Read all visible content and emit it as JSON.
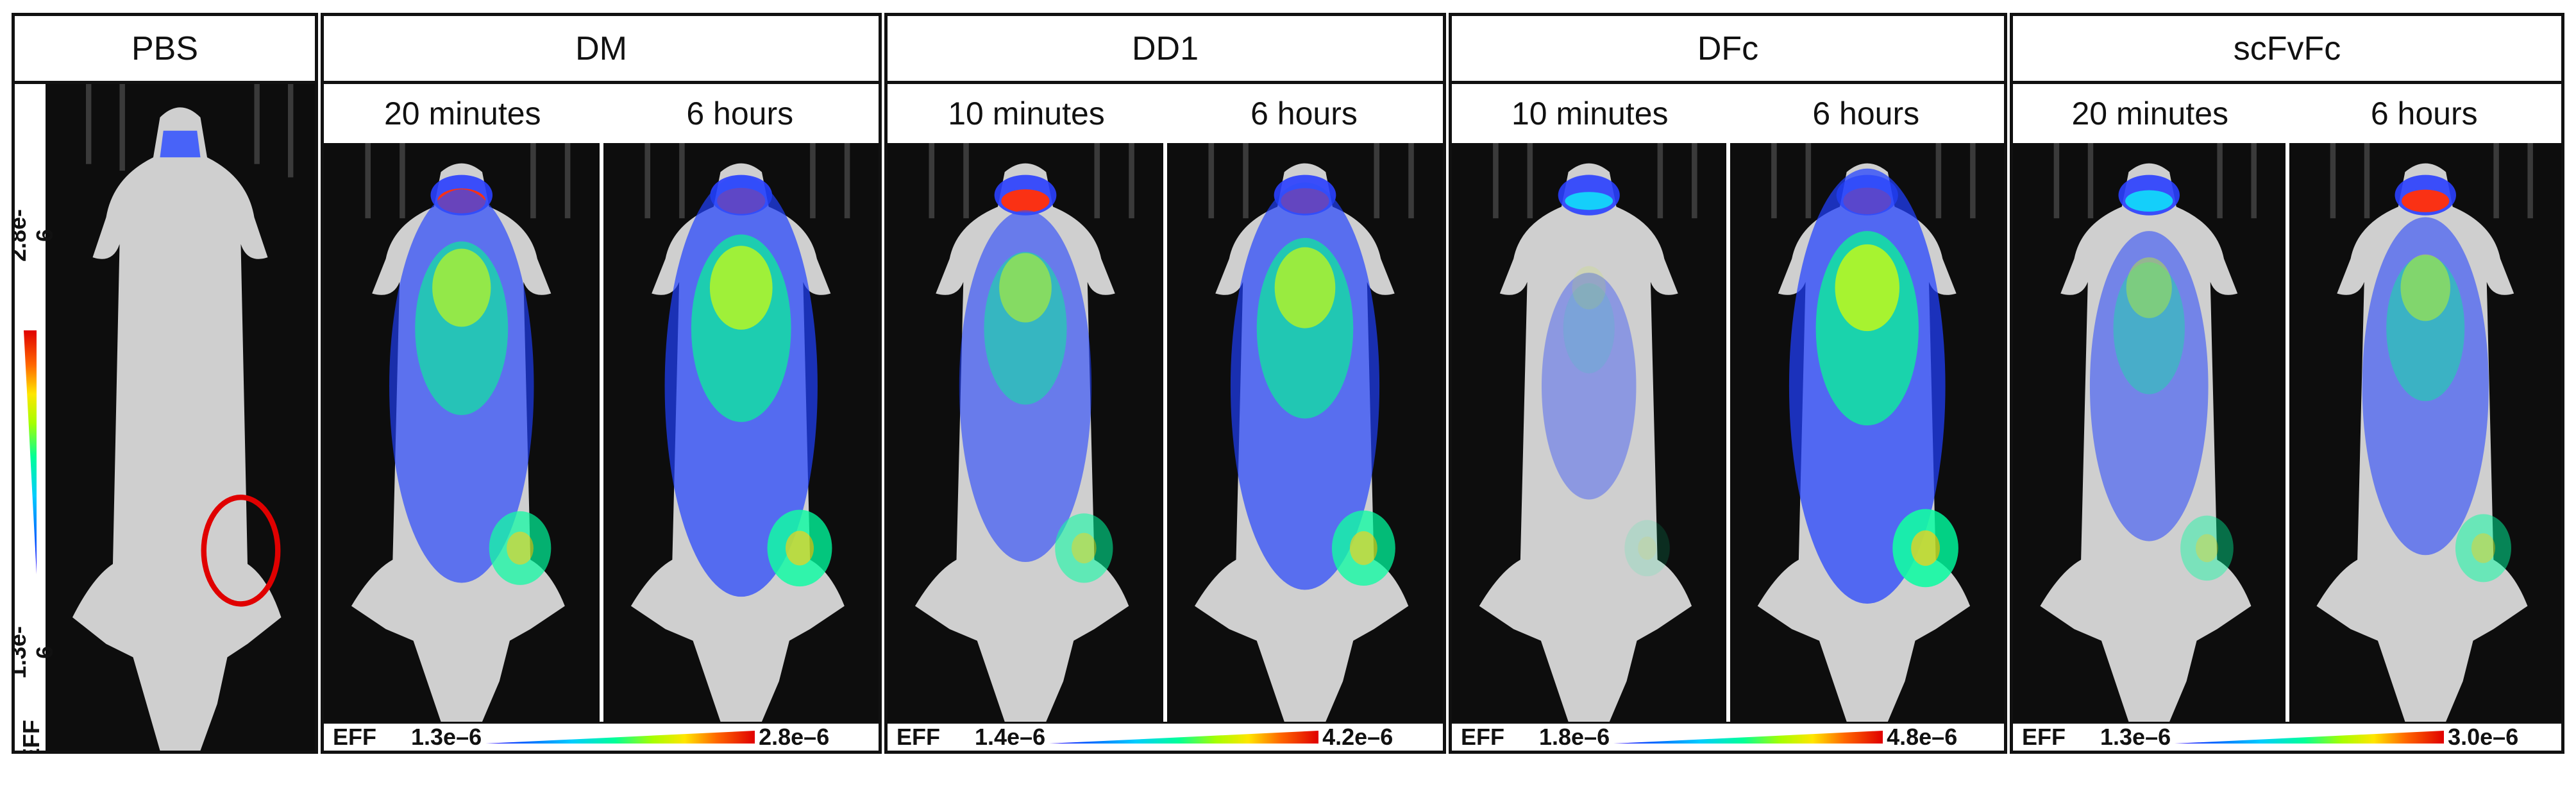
{
  "panels": [
    {
      "title": "PBS",
      "timepoints": [],
      "scale": {
        "eff_label": "EFF",
        "min": "1.3e-6",
        "max": "2.8e-6"
      },
      "images": [
        {
          "label": "",
          "signal": 0.0,
          "tumor_marker": true
        }
      ]
    },
    {
      "title": "DM",
      "timepoints": [
        "20 minutes",
        "6 hours"
      ],
      "scale": {
        "eff_label": "EFF",
        "min": "1.3e–6",
        "max": "2.8e–6"
      },
      "images": [
        {
          "signal": 0.75
        },
        {
          "signal": 0.85
        }
      ]
    },
    {
      "title": "DD1",
      "timepoints": [
        "10 minutes",
        "6 hours"
      ],
      "scale": {
        "eff_label": "EFF",
        "min": "1.4e–6",
        "max": "4.2e–6"
      },
      "images": [
        {
          "signal": 0.6
        },
        {
          "signal": 0.8
        }
      ]
    },
    {
      "title": "DFc",
      "timepoints": [
        "10 minutes",
        "6 hours"
      ],
      "scale": {
        "eff_label": "EFF",
        "min": "1.8e–6",
        "max": "4.8e–6"
      },
      "images": [
        {
          "signal": 0.15
        },
        {
          "signal": 0.9
        }
      ]
    },
    {
      "title": "scFvFc",
      "timepoints": [
        "20 minutes",
        "6 hours"
      ],
      "scale": {
        "eff_label": "EFF",
        "min": "1.3e–6",
        "max": "3.0e–6"
      },
      "images": [
        {
          "signal": 0.45
        },
        {
          "signal": 0.55
        }
      ]
    }
  ],
  "colors": {
    "background": "#0d0d0d",
    "mouse_body": "#cfcfcf",
    "tumor_circle": "#e00000",
    "scale_low": "#2f00ff",
    "scale_high": "#e00000"
  }
}
